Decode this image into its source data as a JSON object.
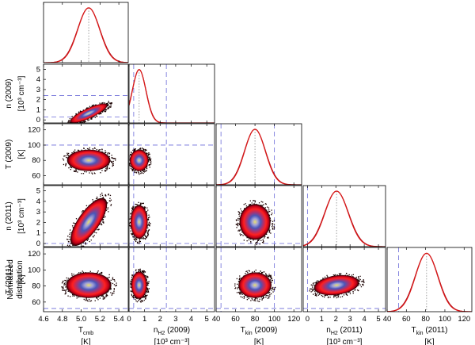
{
  "chart_data": {
    "type": "scatter",
    "title": "",
    "description_labels": {
      "diag_ylabel": [
        "Normalized",
        "distribution"
      ]
    },
    "colors": {
      "density_outer": "#1a0000",
      "density_red": "#c00018",
      "density_bright_red": "#ff2020",
      "density_magenta": "#b0306a",
      "density_blue": "#4a55b8",
      "density_lavender": "#a0a0d8",
      "density_yellow": "#e8e070",
      "curve_red": "#d81818",
      "curve_dark_red": "#a00010",
      "dash_blue": "#6a6ad8",
      "dot_gray": "#888888"
    },
    "parameters": [
      {
        "name": "T_cmb",
        "xlabel_main": "T",
        "xlabel_sub": "cmb",
        "xlabel_suffix": "",
        "unit": "[K]",
        "xlim": [
          4.6,
          5.5
        ],
        "xticks": [
          "4.6",
          "4.8",
          "5.0",
          "5.2",
          "5.4"
        ],
        "xtick_values": [
          4.6,
          4.8,
          5.0,
          5.2,
          5.4
        ],
        "peak": 5.08,
        "sigma": 0.12,
        "guides": []
      },
      {
        "name": "n_H2 (2009)",
        "xlabel_main": "n",
        "xlabel_sub": "H2",
        "xlabel_suffix": " (2009)",
        "unit": "[10³ cm⁻³]",
        "xlim": [
          0,
          5.5
        ],
        "xticks": [
          "0",
          "1",
          "2",
          "3",
          "4",
          "5"
        ],
        "xtick_values": [
          0,
          1,
          2,
          3,
          4,
          5
        ],
        "ylabel": [
          "n   (2009)",
          "[10³ cm⁻³]"
        ],
        "yticks": [
          "0",
          "1",
          "2",
          "3",
          "4",
          "5"
        ],
        "ytick_values": [
          0,
          1,
          2,
          3,
          4,
          5
        ],
        "peak": 0.65,
        "sigma": 0.45,
        "guides": [
          0.3,
          2.4
        ]
      },
      {
        "name": "T_kin (2009)",
        "xlabel_main": "T",
        "xlabel_sub": "kin",
        "xlabel_suffix": " (2009)",
        "unit": "[K]",
        "xlim": [
          40,
          128
        ],
        "xticks": [
          "40",
          "60",
          "80",
          "100",
          "120"
        ],
        "xtick_values": [
          40,
          60,
          80,
          100,
          120
        ],
        "ylabel": [
          "T   (2009)",
          "[K]"
        ],
        "yticks": [
          "60",
          "80",
          "100",
          "120"
        ],
        "ytick_values": [
          60,
          80,
          100,
          120
        ],
        "peak": 80,
        "sigma": 11,
        "guides": [
          45,
          100
        ]
      },
      {
        "name": "n_H2 (2011)",
        "xlabel_main": "n",
        "xlabel_sub": "H2",
        "xlabel_suffix": " (2011)",
        "unit": "[10³ cm⁻³]",
        "xlim": [
          -0.3,
          5.5
        ],
        "xticks": [
          "0",
          "1",
          "2",
          "3",
          "4",
          "5"
        ],
        "xtick_values": [
          0,
          1,
          2,
          3,
          4,
          5
        ],
        "ylabel": [
          "n   (2011)",
          "[10³ cm⁻³]"
        ],
        "yticks": [
          "0",
          "1",
          "2",
          "3",
          "4",
          "5"
        ],
        "ytick_values": [
          0,
          1,
          2,
          3,
          4,
          5
        ],
        "peak": 2.05,
        "sigma": 0.85,
        "guides": [
          0.0
        ]
      },
      {
        "name": "T_kin (2011)",
        "xlabel_main": "T",
        "xlabel_sub": "kin",
        "xlabel_suffix": " (2011)",
        "unit": "[K]",
        "xlim": [
          40,
          128
        ],
        "xticks": [
          "40",
          "60",
          "80",
          "100",
          "120"
        ],
        "xtick_values": [
          40,
          60,
          80,
          100,
          120
        ],
        "ylabel": [
          "T   (2011)",
          "[K]"
        ],
        "yticks": [
          "60",
          "80",
          "100",
          "120"
        ],
        "ytick_values": [
          60,
          80,
          100,
          120
        ],
        "peak": 81,
        "sigma": 12,
        "guides": [
          52
        ]
      }
    ],
    "ylims": {
      "1": [
        -0.3,
        5.5
      ],
      "2": [
        48,
        128
      ],
      "3": [
        -0.3,
        5.5
      ],
      "4": [
        48,
        128
      ]
    },
    "ylim_diag": [
      0,
      1.1
    ],
    "pairs": [
      {
        "row": 1,
        "col": 0,
        "cx": 5.08,
        "cy": 0.65,
        "rx": 0.22,
        "ry": 0.5,
        "rot": -25
      },
      {
        "row": 2,
        "col": 0,
        "cx": 5.08,
        "cy": 80,
        "rx": 0.23,
        "ry": 14,
        "rot": 0
      },
      {
        "row": 2,
        "col": 1,
        "cx": 0.65,
        "cy": 80,
        "rx": 0.6,
        "ry": 14,
        "rot": 0
      },
      {
        "row": 3,
        "col": 0,
        "cx": 5.08,
        "cy": 2.05,
        "rx": 0.3,
        "ry": 1.0,
        "rot": -55
      },
      {
        "row": 3,
        "col": 1,
        "cx": 0.65,
        "cy": 2.05,
        "rx": 0.55,
        "ry": 1.6,
        "rot": 0
      },
      {
        "row": 3,
        "col": 2,
        "cx": 80,
        "cy": 2.05,
        "rx": 16,
        "ry": 1.7,
        "rot": 0
      },
      {
        "row": 4,
        "col": 0,
        "cx": 5.08,
        "cy": 81,
        "rx": 0.24,
        "ry": 16,
        "rot": 0
      },
      {
        "row": 4,
        "col": 1,
        "cx": 0.65,
        "cy": 81,
        "rx": 0.5,
        "ry": 17,
        "rot": 0
      },
      {
        "row": 4,
        "col": 2,
        "cx": 80,
        "cy": 81,
        "rx": 17,
        "ry": 16,
        "rot": 0
      },
      {
        "row": 4,
        "col": 3,
        "cx": 2.05,
        "cy": 81,
        "rx": 1.6,
        "ry": 12,
        "rot": -8
      }
    ]
  }
}
